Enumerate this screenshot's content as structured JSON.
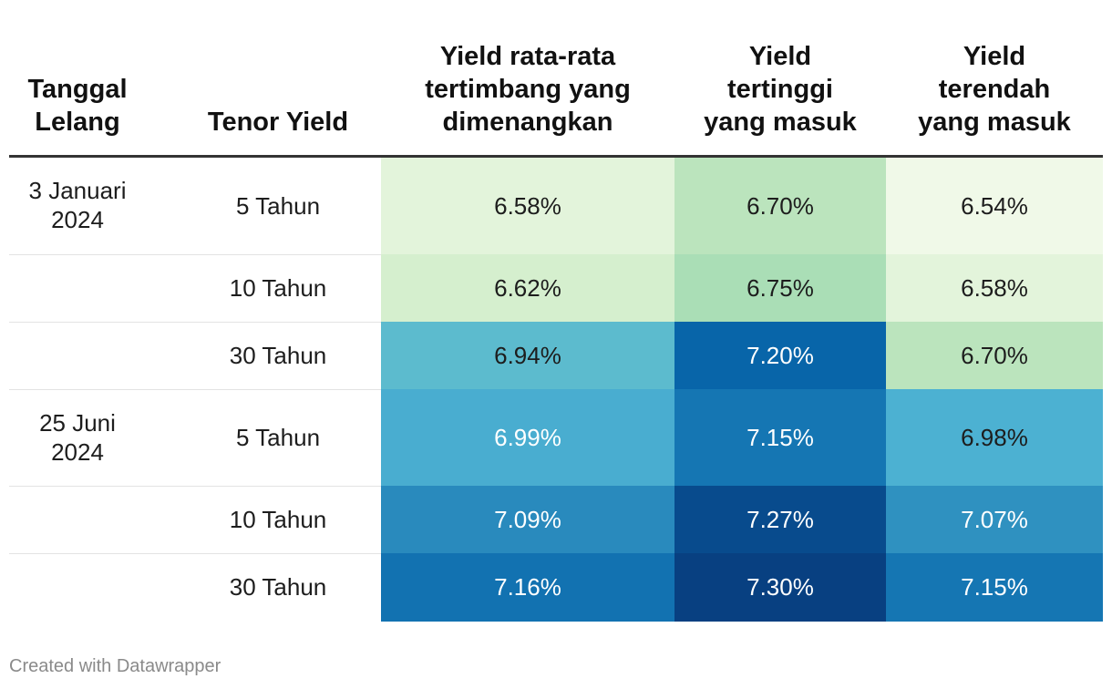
{
  "chart_data": {
    "type": "table",
    "columns": [
      "Tanggal\nLelang",
      "Tenor Yield",
      "Yield rata-rata\ntertimbang yang\ndimenangkan",
      "Yield\ntertinggi\nyang masuk",
      "Yield\nterendah\nyang masuk"
    ],
    "rows": [
      {
        "date": "3 Januari\n2024",
        "tenor": "5 Tahun",
        "avg": 6.58,
        "high": 6.7,
        "low": 6.54
      },
      {
        "date": "",
        "tenor": "10 Tahun",
        "avg": 6.62,
        "high": 6.75,
        "low": 6.58
      },
      {
        "date": "",
        "tenor": "30 Tahun",
        "avg": 6.94,
        "high": 7.2,
        "low": 6.7
      },
      {
        "date": "25 Juni\n2024",
        "tenor": "5 Tahun",
        "avg": 6.99,
        "high": 7.15,
        "low": 6.98
      },
      {
        "date": "",
        "tenor": "10 Tahun",
        "avg": 7.09,
        "high": 7.27,
        "low": 7.07
      },
      {
        "date": "",
        "tenor": "30 Tahun",
        "avg": 7.16,
        "high": 7.3,
        "low": 7.15
      }
    ],
    "value_suffix": "%",
    "color_scale": {
      "min": 6.54,
      "max": 7.3,
      "stops": [
        "#f0f9e8",
        "#ccebc5",
        "#a8ddb5",
        "#7bccc4",
        "#4eb3d3",
        "#2b8cbe",
        "#0868ac",
        "#084081"
      ]
    }
  },
  "footer": "Created with Datawrapper"
}
